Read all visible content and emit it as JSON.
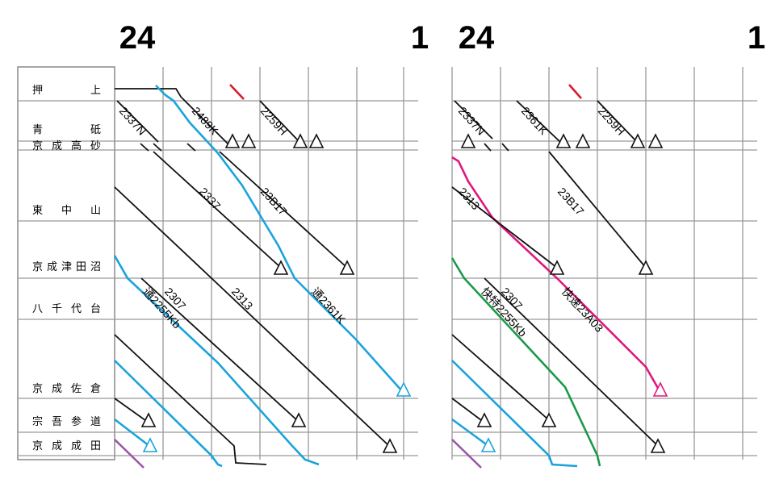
{
  "stations": [
    "押上",
    "青砥",
    "京成高砂",
    "東中山",
    "京成津田沼",
    "八千代台",
    "京成佐倉",
    "宗吾参道",
    "京成成田"
  ],
  "panels": [
    {
      "hours": [
        "24",
        "1"
      ],
      "trains": [
        "2337N",
        "2489K",
        "2259H",
        "2337",
        "23B17",
        "通2255Kb",
        "2307",
        "2313",
        "通2361K"
      ]
    },
    {
      "hours": [
        "24",
        "1"
      ],
      "trains": [
        "2337N",
        "2361K",
        "2259H",
        "2313",
        "23B17",
        "快特2255Kb",
        "2307",
        "快速23A03"
      ]
    }
  ]
}
